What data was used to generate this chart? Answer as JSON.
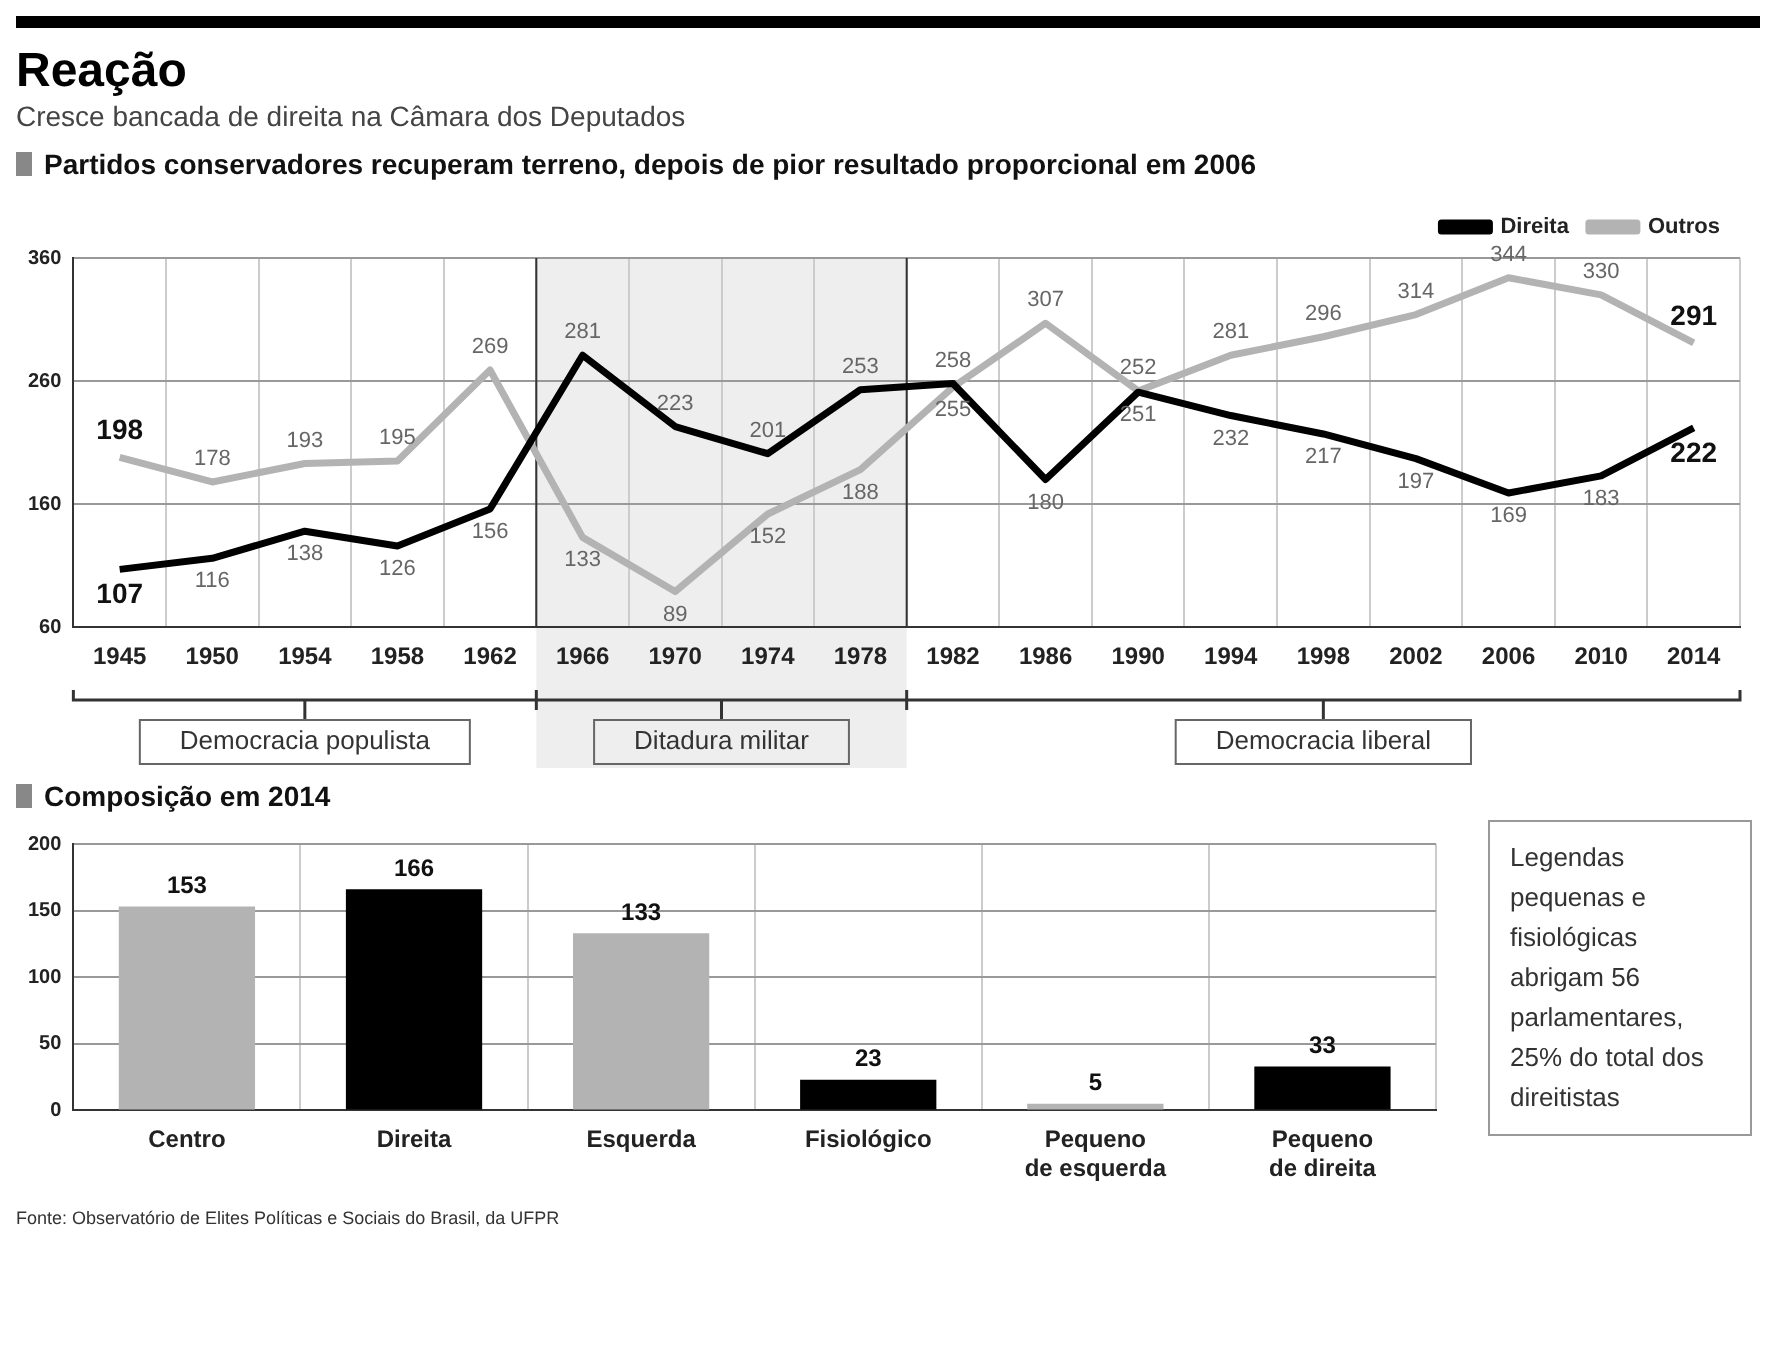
{
  "chart_data": [
    {
      "type": "other",
      "title": "Reação",
      "subtitle": "Cresce bancada de direita na Câmara dos Deputados"
    },
    {
      "type": "line",
      "title": "Partidos conservadores recuperam terreno, depois de pior resultado proporcional em 2006",
      "categories": [
        "1945",
        "1950",
        "1954",
        "1958",
        "1962",
        "1966",
        "1970",
        "1974",
        "1978",
        "1982",
        "1986",
        "1990",
        "1994",
        "1998",
        "2002",
        "2006",
        "2010",
        "2014"
      ],
      "series": [
        {
          "name": "Direita",
          "color": "#000000",
          "values": [
            107,
            116,
            138,
            126,
            156,
            281,
            223,
            201,
            253,
            258,
            180,
            251,
            232,
            217,
            197,
            169,
            183,
            222
          ]
        },
        {
          "name": "Outros",
          "color": "#b3b3b3",
          "values": [
            198,
            178,
            193,
            195,
            269,
            133,
            89,
            152,
            188,
            255,
            307,
            252,
            281,
            296,
            314,
            344,
            330,
            291
          ]
        }
      ],
      "ylim": [
        60,
        360
      ],
      "yticks": [
        60,
        160,
        260,
        360
      ],
      "grid": true,
      "legend": "top right",
      "marker": "none",
      "line_style": "solid",
      "data_labels": true,
      "bands": [
        {
          "axis": "x",
          "from": "1966",
          "to": "1978",
          "label": "Ditadura militar",
          "color": "#eeeeee"
        }
      ],
      "annotations": [
        {
          "text": "Democracia populista",
          "x": "1954"
        },
        {
          "text": "Democracia liberal",
          "x": "1998"
        }
      ]
    },
    {
      "type": "bar",
      "title": "Composição em 2014",
      "categories": [
        "Centro",
        "Direita",
        "Esquerda",
        "Fisiológico",
        "Pequeno de esquerda",
        "Pequeno de direita"
      ],
      "values": [
        153,
        166,
        133,
        23,
        5,
        33
      ],
      "colors": [
        "#b3b3b3",
        "#000000",
        "#b3b3b3",
        "#000000",
        "#b3b3b3",
        "#000000"
      ],
      "ylim": [
        0,
        200
      ],
      "yticks": [
        0,
        50,
        100,
        150,
        200
      ],
      "grid": true,
      "data_labels": true,
      "annotations": [
        "Legendas pequenas e fisiológicas abrigam 56 parlamentares, 25% do total dos direitistas",
        "Fonte: Observatório de Elites Políticas e Sociais do Brasil, da UFPR"
      ]
    }
  ]
}
